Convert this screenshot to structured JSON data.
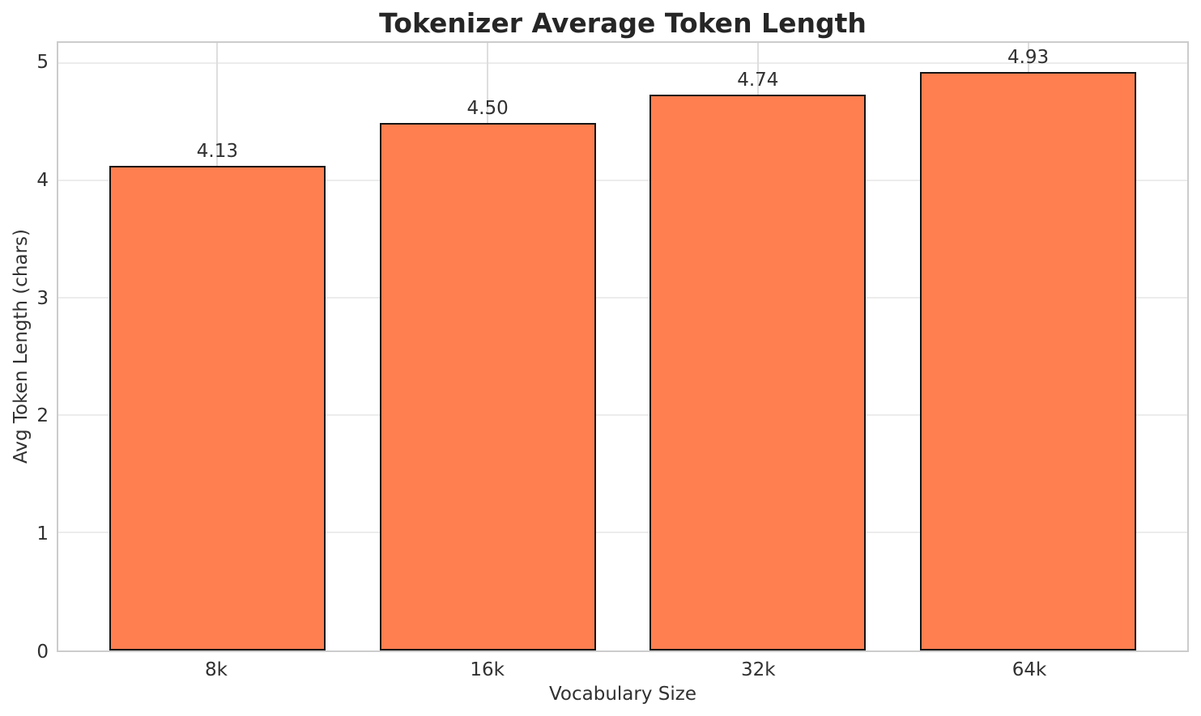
{
  "chart_data": {
    "type": "bar",
    "title": "Tokenizer Average Token Length",
    "xlabel": "Vocabulary Size",
    "ylabel": "Avg Token Length (chars)",
    "categories": [
      "8k",
      "16k",
      "32k",
      "64k"
    ],
    "values": [
      4.13,
      4.5,
      4.74,
      4.93
    ],
    "value_labels": [
      "4.13",
      "4.50",
      "4.74",
      "4.93"
    ],
    "yticks": [
      0,
      1,
      2,
      3,
      4,
      5
    ],
    "ylim": [
      0,
      5.18
    ],
    "grid": true,
    "legend": false,
    "bar_color": "#FF7F50",
    "bar_edge_color": "#141414",
    "grid_color": "#ececec",
    "spine_color": "#cccccc",
    "text_color": "#313131",
    "title_color": "#262626"
  }
}
